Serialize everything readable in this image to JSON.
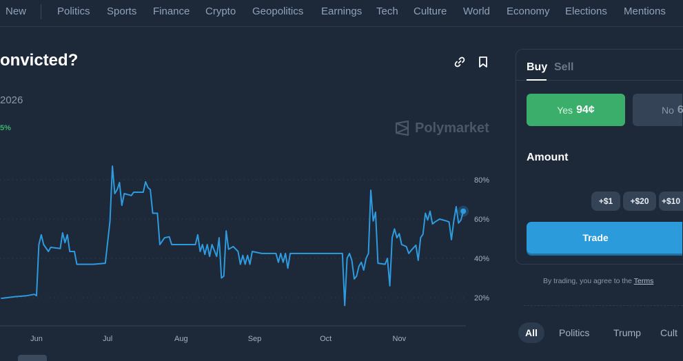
{
  "nav": {
    "items": [
      "New",
      "Politics",
      "Sports",
      "Finance",
      "Crypto",
      "Geopolitics",
      "Earnings",
      "Tech",
      "Culture",
      "World",
      "Economy",
      "Elections",
      "Mentions"
    ]
  },
  "market": {
    "title": "onvicted?",
    "end_date": "2026",
    "chance_change": "5%",
    "watermark": "Polymarket",
    "link_icon": "link-icon",
    "bookmark_icon": "bookmark-icon"
  },
  "trade_panel": {
    "tab_buy": "Buy",
    "tab_sell": "Sell",
    "yes_label": "Yes",
    "yes_price": "94¢",
    "no_label": "No",
    "no_price": "6",
    "amount_label": "Amount",
    "chips": [
      "+$1",
      "+$20",
      "+$10"
    ],
    "trade_label": "Trade",
    "terms_prefix": "By trading, you agree to the",
    "terms_link": "Terms",
    "colors": {
      "yes": "#3aae6a",
      "trade": "#2c9bdb"
    }
  },
  "filters": [
    "All",
    "Politics",
    "Trump",
    "Cult"
  ],
  "chart_data": {
    "type": "line",
    "x_tick_labels": [
      "Jun",
      "Jul",
      "Aug",
      "Sep",
      "Oct",
      "Nov"
    ],
    "y_tick_labels": [
      "80%",
      "60%",
      "40%",
      "20%"
    ],
    "y_ticks": [
      80,
      60,
      40,
      20
    ],
    "ylim": [
      5,
      90
    ],
    "grid": true,
    "line_color": "#2e9be0",
    "points": [
      [
        "May 17",
        19.6
      ],
      [
        "May 23",
        20.5
      ],
      [
        "May 28",
        21
      ],
      [
        "May 31",
        21.7
      ],
      [
        "Jun 1",
        21
      ],
      [
        "Jun 2",
        47
      ],
      [
        "Jun 3",
        52
      ],
      [
        "Jun 4",
        47
      ],
      [
        "Jun 6",
        43.5
      ],
      [
        "Jun 7",
        45.6
      ],
      [
        "Jun 11",
        45
      ],
      [
        "Jun 12",
        53
      ],
      [
        "Jun 13",
        48
      ],
      [
        "Jun 14",
        52
      ],
      [
        "Jun 15",
        43.5
      ],
      [
        "Jun 17",
        43.5
      ],
      [
        "Jun 18",
        37
      ],
      [
        "Jun 25",
        37
      ],
      [
        "Jun 30",
        37.5
      ],
      [
        "Jul 2",
        59
      ],
      [
        "Jul 3",
        87
      ],
      [
        "Jul 4",
        73
      ],
      [
        "Jul 5",
        75
      ],
      [
        "Jul 6",
        78.6
      ],
      [
        "Jul 7",
        67
      ],
      [
        "Jul 8",
        73
      ],
      [
        "Jul 11",
        72
      ],
      [
        "Jul 12",
        73.7
      ],
      [
        "Jul 16",
        73.7
      ],
      [
        "Jul 17",
        79
      ],
      [
        "Jul 18",
        76
      ],
      [
        "Jul 19",
        75
      ],
      [
        "Jul 20",
        63
      ],
      [
        "Jul 22",
        63
      ],
      [
        "Jul 23",
        47
      ],
      [
        "Jul 25",
        50.5
      ],
      [
        "Jul 27",
        51
      ],
      [
        "Jul 28",
        47
      ],
      [
        "Aug 7",
        47
      ],
      [
        "Aug 8",
        52
      ],
      [
        "Aug 9",
        43.5
      ],
      [
        "Aug 10",
        47
      ],
      [
        "Aug 11",
        42
      ],
      [
        "Aug 12",
        47
      ],
      [
        "Aug 13",
        41
      ],
      [
        "Aug 14",
        47
      ],
      [
        "Aug 16",
        41
      ],
      [
        "Aug 17",
        50.5
      ],
      [
        "Aug 18",
        30
      ],
      [
        "Aug 19",
        31
      ],
      [
        "Aug 20",
        54
      ],
      [
        "Aug 21",
        44.6
      ],
      [
        "Aug 23",
        46
      ],
      [
        "Aug 25",
        43.5
      ],
      [
        "Aug 26",
        37
      ],
      [
        "Aug 27",
        41.5
      ],
      [
        "Aug 28",
        37
      ],
      [
        "Aug 29",
        41.5
      ],
      [
        "Aug 30",
        37
      ],
      [
        "Aug 31",
        43.5
      ],
      [
        "Sep 4",
        42.5
      ],
      [
        "Sep 10",
        42.5
      ],
      [
        "Sep 11",
        38
      ],
      [
        "Sep 12",
        42.5
      ],
      [
        "Sep 13",
        38
      ],
      [
        "Sep 14",
        42.5
      ],
      [
        "Sep 15",
        35
      ],
      [
        "Sep 16",
        42.5
      ],
      [
        "Sep 20",
        42.5
      ],
      [
        "Oct 8",
        42.5
      ],
      [
        "Oct 9",
        16
      ],
      [
        "Oct 10",
        40
      ],
      [
        "Oct 11",
        42.5
      ],
      [
        "Oct 12",
        39
      ],
      [
        "Oct 13",
        29.5
      ],
      [
        "Oct 14",
        31
      ],
      [
        "Oct 15",
        36
      ],
      [
        "Oct 16",
        38
      ],
      [
        "Oct 17",
        34
      ],
      [
        "Oct 18",
        40
      ],
      [
        "Oct 19",
        42.5
      ],
      [
        "Oct 20",
        74.7
      ],
      [
        "Oct 21",
        59
      ],
      [
        "Oct 22",
        63.5
      ],
      [
        "Oct 23",
        37.5
      ],
      [
        "Oct 26",
        37
      ],
      [
        "Oct 27",
        40
      ],
      [
        "Oct 28",
        26
      ],
      [
        "Oct 29",
        50.5
      ],
      [
        "Oct 30",
        55
      ],
      [
        "Oct 31",
        50.5
      ],
      [
        "Nov 1",
        52.6
      ],
      [
        "Nov 2",
        47
      ],
      [
        "Nov 4",
        46
      ],
      [
        "Nov 5",
        42.5
      ],
      [
        "Nov 6",
        44
      ],
      [
        "Nov 8",
        46.7
      ],
      [
        "Nov 9",
        39
      ],
      [
        "Nov 10",
        50.5
      ],
      [
        "Nov 11",
        52.3
      ],
      [
        "Nov 12",
        63
      ],
      [
        "Nov 13",
        59.5
      ],
      [
        "Nov 14",
        64
      ],
      [
        "Nov 15",
        57.5
      ],
      [
        "Nov 16",
        58.5
      ],
      [
        "Nov 18",
        60
      ],
      [
        "Nov 21",
        59
      ],
      [
        "Nov 22",
        58.5
      ],
      [
        "Nov 23",
        49.5
      ],
      [
        "Nov 24",
        59
      ],
      [
        "Nov 25",
        66.3
      ],
      [
        "Nov 26",
        58
      ],
      [
        "Nov 27",
        59.5
      ],
      [
        "Nov 28",
        64
      ]
    ]
  }
}
